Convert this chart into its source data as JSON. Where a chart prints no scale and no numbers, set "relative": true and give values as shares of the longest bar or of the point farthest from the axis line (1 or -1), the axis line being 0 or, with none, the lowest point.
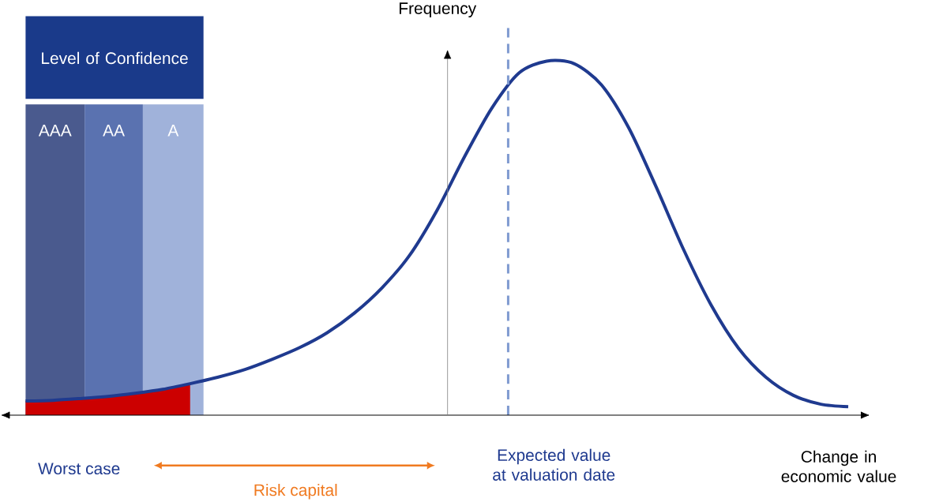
{
  "chart_data": {
    "type": "line",
    "relative": true,
    "categories": [
      null,
      null,
      null,
      null,
      null,
      null,
      null,
      null,
      null,
      null,
      null,
      null,
      null,
      null,
      null,
      null,
      null,
      null,
      null,
      null,
      null,
      null,
      null,
      null,
      null,
      null,
      null,
      null,
      null,
      null,
      null
    ],
    "ylabel": "Frequency",
    "xlabel": "Change in economic value",
    "series": [
      {
        "color": "#1f3a8f",
        "values": [
          0.04,
          0.042,
          0.047,
          0.053,
          0.062,
          0.073,
          0.089,
          0.107,
          0.129,
          0.158,
          0.191,
          0.233,
          0.289,
          0.36,
          0.451,
          0.578,
          0.729,
          0.867,
          0.967,
          1,
          0.993,
          0.933,
          0.811,
          0.644,
          0.467,
          0.311,
          0.189,
          0.107,
          0.056,
          0.031,
          0.024
        ]
      },
      {
        "type": "area",
        "color": "#cc0000",
        "values": [
          0.04,
          0.042,
          0.047,
          0.053,
          0.062,
          0.073,
          0.089,
          null,
          null,
          null,
          null,
          null,
          null,
          null,
          null,
          null,
          null,
          null,
          null,
          null,
          null,
          null,
          null,
          null,
          null,
          null,
          null,
          null,
          null,
          null,
          null
        ]
      }
    ],
    "annotations": [
      "Level of Confidence",
      "AAA",
      "AA",
      "A",
      "Expected value at valuation date",
      "Worst case",
      "Risk capital"
    ]
  }
}
